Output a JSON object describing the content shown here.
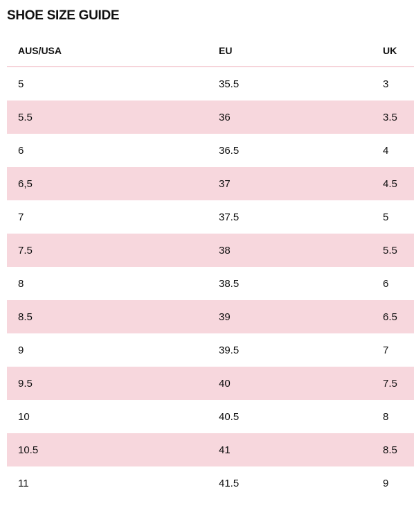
{
  "title": "SHOE SIZE GUIDE",
  "table": {
    "headers": [
      "AUS/USA",
      "EU",
      "UK"
    ],
    "rows": [
      [
        "5",
        "35.5",
        "3"
      ],
      [
        "5.5",
        "36",
        "3.5"
      ],
      [
        "6",
        "36.5",
        "4"
      ],
      [
        "6,5",
        "37",
        "4.5"
      ],
      [
        "7",
        "37.5",
        "5"
      ],
      [
        "7.5",
        "38",
        "5.5"
      ],
      [
        "8",
        "38.5",
        "6"
      ],
      [
        "8.5",
        "39",
        "6.5"
      ],
      [
        "9",
        "39.5",
        "7"
      ],
      [
        "9.5",
        "40",
        "7.5"
      ],
      [
        "10",
        "40.5",
        "8"
      ],
      [
        "10.5",
        "41",
        "8.5"
      ],
      [
        "11",
        "41.5",
        "9"
      ]
    ]
  },
  "colors": {
    "stripe": "#f7d7dd",
    "header_rule": "#f6d4da",
    "text": "#111111"
  }
}
